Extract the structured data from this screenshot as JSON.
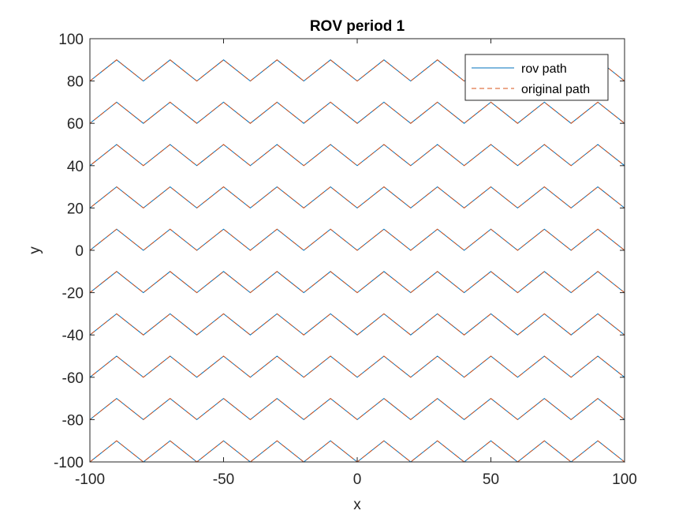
{
  "chart_data": {
    "type": "line",
    "title": "ROV period 1",
    "xlabel": "x",
    "ylabel": "y",
    "xlim": [
      -100,
      100
    ],
    "ylim": [
      -100,
      100
    ],
    "xticks": [
      -100,
      -50,
      0,
      50,
      100
    ],
    "yticks": [
      -100,
      -80,
      -60,
      -40,
      -20,
      0,
      20,
      40,
      60,
      80,
      100
    ],
    "xtick_labels": [
      "-100",
      "-50",
      "0",
      "50",
      "100"
    ],
    "ytick_labels": [
      "-100",
      "-80",
      "-60",
      "-40",
      "-20",
      "0",
      "20",
      "40",
      "60",
      "80",
      "100"
    ],
    "grid": false,
    "legend_position": "top-right",
    "path_pattern": {
      "rows_base_y": [
        -100,
        -80,
        -60,
        -40,
        -20,
        0,
        20,
        40,
        60,
        80
      ],
      "zigzag_amplitude": 10,
      "zigzag_half_period_x": 10,
      "x_start": -100,
      "x_end": 100,
      "row_direction": "alternating (boustrophedon), vertical connectors at x = -100 and x = 100"
    },
    "series": [
      {
        "name": "rov path",
        "style": "solid",
        "color": "#0072BD"
      },
      {
        "name": "original path",
        "style": "dashed",
        "color": "#D95319"
      }
    ]
  }
}
